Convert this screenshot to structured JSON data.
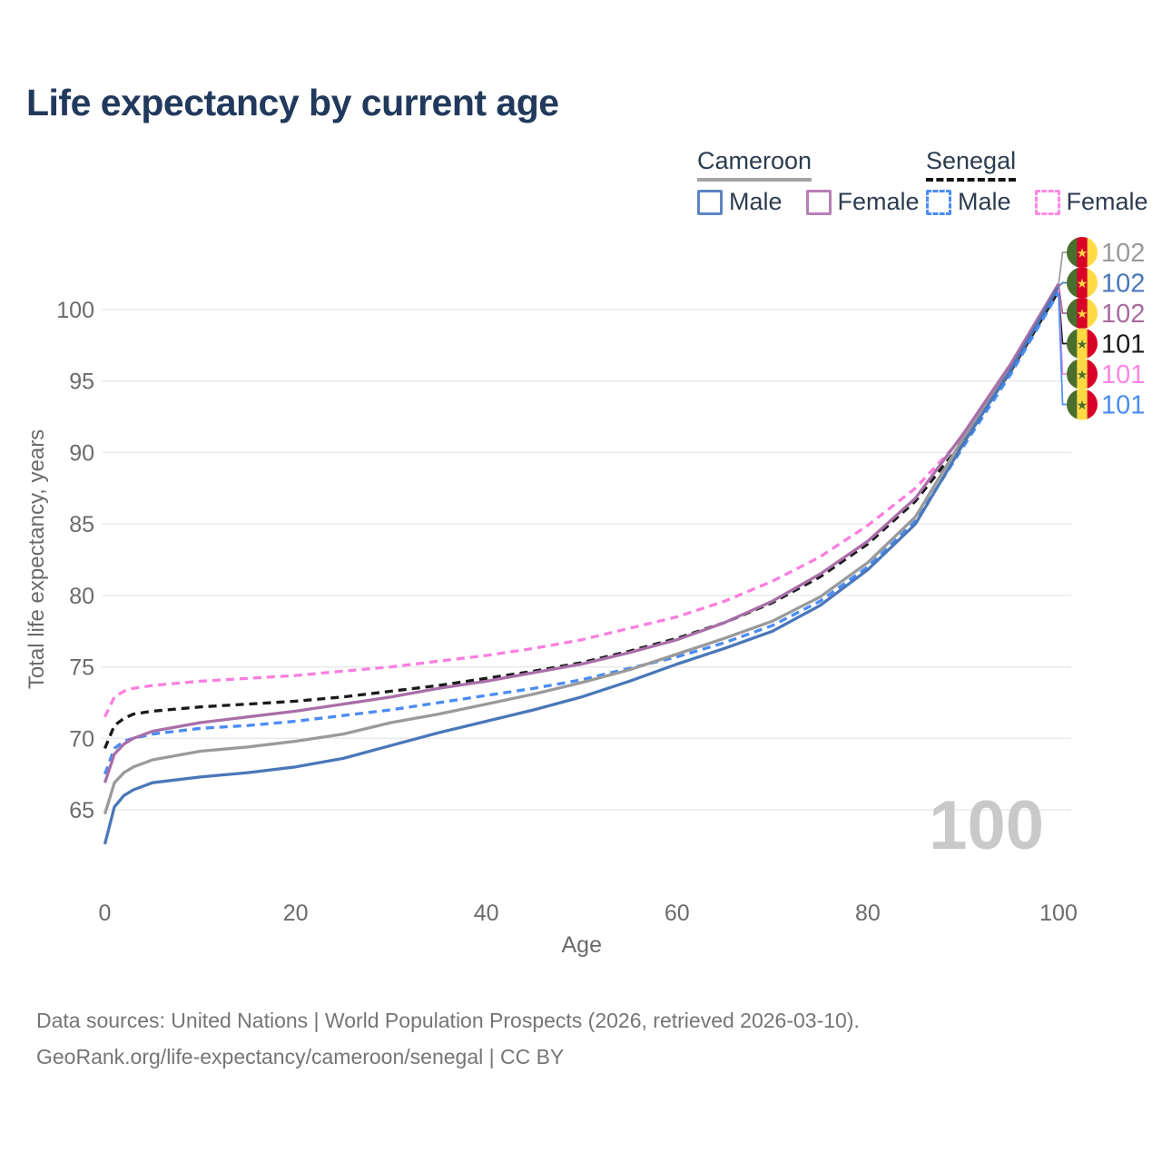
{
  "title": "Life expectancy by current age",
  "legend": {
    "cameroon": {
      "label": "Cameroon",
      "male": "Male",
      "female": "Female"
    },
    "senegal": {
      "label": "Senegal",
      "male": "Male",
      "female": "Female"
    }
  },
  "watermark": "100",
  "footer": {
    "line1": "Data sources: United Nations | World Population Prospects (2026, retrieved 2026-03-10).",
    "line2": "GeoRank.org/life-expectancy/cameroon/senegal | CC BY"
  },
  "colors": {
    "title": "#21395c",
    "axis_text": "#6b6b6b",
    "grid": "#e9e9e9",
    "watermark": "#c9c9c9"
  },
  "flags": {
    "cameroon": {
      "stripes": [
        "#496E2D",
        "#D80027",
        "#FFDA44"
      ],
      "star": "#FFDA44"
    },
    "senegal": {
      "stripes": [
        "#496E2D",
        "#FFDA44",
        "#D80027"
      ],
      "star": "#496E2D"
    }
  },
  "chart_data": {
    "type": "line",
    "title": "Life expectancy by current age",
    "xlabel": "Age",
    "ylabel": "Total life expectancy, years",
    "xlim": [
      0,
      100
    ],
    "ylim": [
      62,
      103
    ],
    "x_ticks": [
      0,
      20,
      40,
      60,
      80,
      100
    ],
    "y_ticks": [
      65,
      70,
      75,
      80,
      85,
      90,
      95,
      100
    ],
    "grid": true,
    "legend_position": "top-right",
    "x": [
      0,
      1,
      2,
      3,
      5,
      10,
      15,
      20,
      25,
      30,
      35,
      40,
      45,
      50,
      55,
      60,
      65,
      70,
      75,
      80,
      85,
      90,
      95,
      100
    ],
    "series": [
      {
        "id": "sen-female",
        "name": "Senegal Female",
        "country": "Senegal",
        "sex": "Female",
        "color": "#fb7ee0",
        "dash": true,
        "label_row": 4,
        "end_label": {
          "text": "101",
          "color": "#ff85e6"
        },
        "flag": "senegal",
        "values": [
          71.5,
          72.9,
          73.3,
          73.5,
          73.7,
          74.0,
          74.2,
          74.4,
          74.7,
          75.0,
          75.4,
          75.8,
          76.3,
          76.9,
          77.7,
          78.5,
          79.6,
          81.0,
          82.7,
          84.9,
          87.5,
          91.1,
          95.9,
          101.4
        ]
      },
      {
        "id": "sen-total",
        "name": "Senegal",
        "country": "Senegal",
        "sex": "Both",
        "color": "#1a1a1a",
        "dash": true,
        "label_row": 3,
        "end_label": {
          "text": "101",
          "color": "#1a1a1a"
        },
        "flag": "senegal",
        "values": [
          69.3,
          70.9,
          71.4,
          71.7,
          71.9,
          72.2,
          72.4,
          72.6,
          72.9,
          73.3,
          73.7,
          74.2,
          74.7,
          75.3,
          76.1,
          77.0,
          78.1,
          79.5,
          81.3,
          83.6,
          86.6,
          90.8,
          95.7,
          101.3
        ]
      },
      {
        "id": "sen-male",
        "name": "Senegal Male",
        "country": "Senegal",
        "sex": "Male",
        "color": "#4a8cf5",
        "dash": true,
        "label_row": 5,
        "end_label": {
          "text": "101",
          "color": "#4a8cf5"
        },
        "flag": "senegal",
        "values": [
          67.5,
          69.3,
          69.8,
          70.0,
          70.3,
          70.7,
          70.9,
          71.2,
          71.6,
          72.0,
          72.5,
          73.0,
          73.5,
          74.1,
          74.9,
          75.7,
          76.7,
          77.9,
          79.6,
          82.0,
          85.2,
          90.4,
          95.5,
          101.2
        ]
      },
      {
        "id": "cam-total",
        "name": "Cameroon",
        "country": "Cameroon",
        "sex": "Both",
        "color": "#9a9a9a",
        "dash": false,
        "label_row": 0,
        "end_label": {
          "text": "102",
          "color": "#9a9a9a"
        },
        "flag": "cameroon",
        "values": [
          64.7,
          66.9,
          67.6,
          68.0,
          68.5,
          69.1,
          69.4,
          69.8,
          70.3,
          71.1,
          71.7,
          72.4,
          73.1,
          73.9,
          74.8,
          75.9,
          77.0,
          78.2,
          79.9,
          82.3,
          85.5,
          91.0,
          96.0,
          101.7
        ]
      },
      {
        "id": "cam-female",
        "name": "Cameroon Female",
        "country": "Cameroon",
        "sex": "Female",
        "color": "#a86fa8",
        "dash": false,
        "label_row": 2,
        "end_label": {
          "text": "102",
          "color": "#a86a9f"
        },
        "flag": "cameroon",
        "values": [
          66.9,
          68.9,
          69.6,
          70.0,
          70.5,
          71.1,
          71.5,
          71.9,
          72.4,
          72.9,
          73.5,
          74.0,
          74.6,
          75.2,
          76.0,
          76.9,
          78.1,
          79.6,
          81.5,
          83.8,
          86.8,
          91.3,
          96.2,
          101.8
        ]
      },
      {
        "id": "cam-male",
        "name": "Cameroon Male",
        "country": "Cameroon",
        "sex": "Male",
        "color": "#4a77b9",
        "dash": false,
        "label_row": 1,
        "end_label": {
          "text": "102",
          "color": "#4a77b9"
        },
        "flag": "cameroon",
        "values": [
          62.6,
          65.2,
          66.0,
          66.4,
          66.9,
          67.3,
          67.6,
          68.0,
          68.6,
          69.5,
          70.4,
          71.2,
          72.0,
          72.9,
          74.0,
          75.2,
          76.3,
          77.5,
          79.3,
          81.8,
          85.0,
          90.6,
          95.8,
          101.6
        ]
      }
    ]
  }
}
